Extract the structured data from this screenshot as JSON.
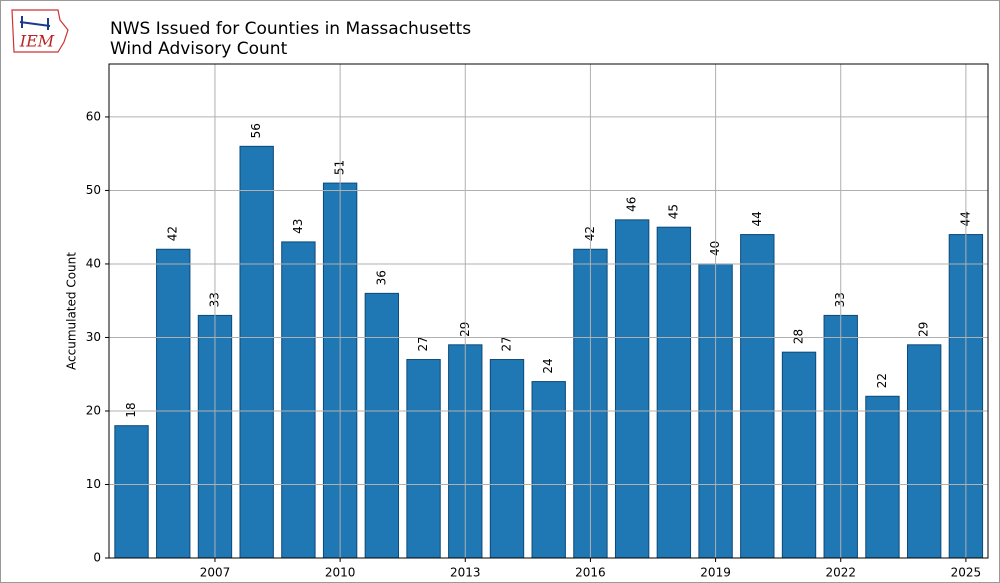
{
  "logo": "IEM",
  "chart_data": {
    "type": "bar",
    "title": "NWS Issued for Counties in Massachusetts",
    "subtitle": "Wind Advisory Count",
    "ylabel": "Accumulated Count",
    "x": [
      2005,
      2006,
      2007,
      2008,
      2009,
      2010,
      2011,
      2012,
      2013,
      2014,
      2015,
      2016,
      2017,
      2018,
      2019,
      2020,
      2021,
      2022,
      2023,
      2024,
      2025
    ],
    "values": [
      18,
      42,
      33,
      56,
      43,
      51,
      36,
      27,
      29,
      27,
      24,
      42,
      46,
      45,
      40,
      44,
      28,
      33,
      22,
      29,
      44
    ],
    "color": "#1f77b4",
    "xlim": [
      2004.46,
      2025.53
    ],
    "xticks": [
      2007,
      2010,
      2013,
      2016,
      2019,
      2022,
      2025
    ],
    "ylim": [
      0,
      67.2
    ],
    "yticks": [
      0,
      10,
      20,
      30,
      40,
      50,
      60
    ],
    "grid": true
  }
}
